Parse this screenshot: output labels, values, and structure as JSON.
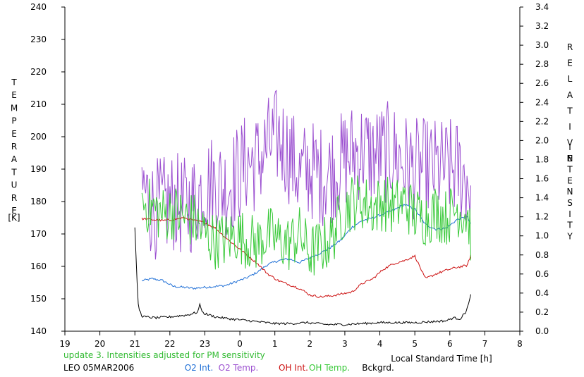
{
  "chart_data": {
    "type": "line",
    "title": "",
    "ylabel_left_letters": [
      "T",
      "E",
      "M",
      "P",
      "E",
      "R",
      "A",
      "T",
      "U",
      "R",
      "E"
    ],
    "ylabel_left_unit": "[K]",
    "ylabel_right_words": [
      [
        "R",
        "E",
        "L",
        "A",
        "T",
        "I",
        "V",
        "E"
      ],
      [
        "I",
        "N",
        "T",
        "E",
        "N",
        "S",
        "I",
        "T",
        "Y"
      ]
    ],
    "xlabel": "Local Standard Time [h]",
    "xlim": [
      19,
      32
    ],
    "xtick_values": [
      19,
      20,
      21,
      22,
      23,
      24,
      25,
      26,
      27,
      28,
      29,
      30,
      31,
      32
    ],
    "xtick_labels": [
      "19",
      "20",
      "21",
      "22",
      "23",
      "0",
      "1",
      "2",
      "3",
      "4",
      "5",
      "6",
      "7",
      "8"
    ],
    "ylim_left": [
      140,
      240
    ],
    "ytick_left": [
      "140",
      "150",
      "160",
      "170",
      "180",
      "190",
      "200",
      "210",
      "220",
      "230",
      "240"
    ],
    "ylim_right": [
      0,
      3.4
    ],
    "ytick_right": [
      "0.0",
      "0.2",
      "0.4",
      "0.6",
      "0.8",
      "1.0",
      "1.2",
      "1.4",
      "1.6",
      "1.8",
      "2.0",
      "2.2",
      "2.4",
      "2.6",
      "2.8",
      "3.0",
      "3.2",
      "3.4"
    ],
    "grid": false,
    "note": "update 3. Intensities adjusted for PM sensitivity",
    "note_color": "#33bb33",
    "station": "LEO 05MAR2006",
    "series": [
      {
        "name": "O2 Int.",
        "color": "#1f6fd6",
        "axis": "right",
        "x": [
          21.2,
          21.5,
          21.8,
          22.1,
          22.4,
          22.7,
          23.0,
          23.3,
          23.6,
          23.9,
          24.2,
          24.5,
          24.8,
          25.1,
          25.4,
          25.7,
          26.0,
          26.3,
          26.6,
          26.9,
          27.2,
          27.5,
          27.8,
          28.1,
          28.4,
          28.7,
          29.0,
          29.3,
          29.6,
          29.9,
          30.2,
          30.5,
          30.6
        ],
        "y": [
          0.53,
          0.55,
          0.53,
          0.47,
          0.46,
          0.45,
          0.46,
          0.47,
          0.48,
          0.52,
          0.56,
          0.62,
          0.7,
          0.74,
          0.76,
          0.72,
          0.77,
          0.82,
          0.88,
          0.96,
          1.09,
          1.16,
          1.19,
          1.23,
          1.27,
          1.33,
          1.28,
          1.12,
          1.07,
          1.08,
          1.17,
          1.2,
          1.12
        ]
      },
      {
        "name": "O2 Temp.",
        "color": "#9b4fd0",
        "axis": "left",
        "noise": 16,
        "x": [
          21.2,
          21.5,
          21.8,
          22.1,
          22.4,
          22.7,
          23.0,
          23.3,
          23.6,
          23.9,
          24.2,
          24.5,
          24.8,
          25.1,
          25.4,
          25.7,
          26.0,
          26.3,
          26.6,
          26.9,
          27.2,
          27.5,
          27.8,
          28.1,
          28.4,
          28.7,
          29.0,
          29.3,
          29.6,
          29.9,
          30.2,
          30.5,
          30.6
        ],
        "y": [
          185,
          178,
          178,
          180,
          178,
          180,
          185,
          186,
          184,
          188,
          192,
          192,
          197,
          200,
          195,
          188,
          190,
          188,
          189,
          192,
          195,
          196,
          194,
          195,
          195,
          192,
          190,
          190,
          190,
          190,
          190,
          187,
          184
        ]
      },
      {
        "name": "OH Int.",
        "color": "#cc1010",
        "axis": "right",
        "x": [
          21.2,
          21.5,
          21.8,
          22.1,
          22.4,
          22.7,
          23.0,
          23.3,
          23.6,
          23.9,
          24.2,
          24.5,
          24.8,
          25.1,
          25.4,
          25.7,
          26.0,
          26.3,
          26.6,
          26.9,
          27.2,
          27.5,
          27.8,
          28.1,
          28.4,
          28.7,
          29.0,
          29.3,
          29.6,
          29.9,
          30.2,
          30.5,
          30.6
        ],
        "y": [
          1.18,
          1.17,
          1.16,
          1.17,
          1.19,
          1.16,
          1.14,
          1.08,
          0.98,
          0.89,
          0.8,
          0.71,
          0.6,
          0.53,
          0.49,
          0.45,
          0.38,
          0.36,
          0.37,
          0.39,
          0.41,
          0.5,
          0.55,
          0.65,
          0.71,
          0.74,
          0.79,
          0.55,
          0.6,
          0.64,
          0.67,
          0.69,
          0.8
        ]
      },
      {
        "name": "OH Temp.",
        "color": "#39c939",
        "axis": "left",
        "noise": 9,
        "x": [
          21.2,
          21.5,
          21.8,
          22.1,
          22.4,
          22.7,
          23.0,
          23.3,
          23.6,
          23.9,
          24.2,
          24.5,
          24.8,
          25.1,
          25.4,
          25.7,
          26.0,
          26.3,
          26.6,
          26.9,
          27.2,
          27.5,
          27.8,
          28.1,
          28.4,
          28.7,
          29.0,
          29.3,
          29.6,
          29.9,
          30.2,
          30.5,
          30.6
        ],
        "y": [
          180,
          178,
          176,
          177,
          175,
          174,
          170,
          168,
          168,
          170,
          168,
          167,
          170,
          168,
          167,
          170,
          164,
          166,
          168,
          176,
          180,
          180,
          178,
          180,
          178,
          180,
          176,
          175,
          177,
          175,
          178,
          176,
          170
        ]
      },
      {
        "name": "Bckgrd.",
        "color": "#000000",
        "axis": "right",
        "x": [
          21.0,
          21.05,
          21.1,
          21.2,
          21.3,
          21.6,
          22.0,
          22.5,
          22.8,
          22.85,
          22.95,
          23.3,
          23.7,
          24.0,
          24.5,
          25.0,
          25.5,
          25.9,
          26.2,
          26.5,
          27.0,
          27.5,
          28.0,
          28.5,
          29.0,
          29.5,
          29.9,
          30.1,
          30.3,
          30.45,
          30.55,
          30.6
        ],
        "y": [
          1.08,
          0.62,
          0.25,
          0.16,
          0.15,
          0.14,
          0.15,
          0.17,
          0.2,
          0.28,
          0.19,
          0.15,
          0.13,
          0.12,
          0.1,
          0.08,
          0.08,
          0.09,
          0.08,
          0.07,
          0.07,
          0.08,
          0.09,
          0.09,
          0.09,
          0.1,
          0.11,
          0.14,
          0.13,
          0.2,
          0.3,
          0.38
        ]
      }
    ]
  }
}
